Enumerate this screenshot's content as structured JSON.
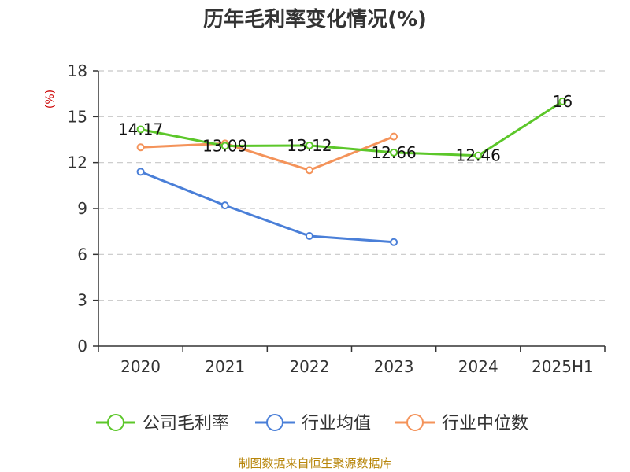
{
  "chart_data": {
    "type": "line",
    "title": "历年毛利率变化情况(%)",
    "ylabel": "(%)",
    "xlabel": "",
    "categories": [
      "2020",
      "2021",
      "2022",
      "2023",
      "2024",
      "2025H1"
    ],
    "ylim": [
      0,
      18
    ],
    "yticks": [
      0,
      3,
      6,
      9,
      12,
      15,
      18
    ],
    "grid": true,
    "legend_position": "bottom",
    "series": [
      {
        "name": "公司毛利率",
        "color": "#5cc72a",
        "values": [
          14.17,
          13.09,
          13.12,
          12.66,
          12.46,
          16
        ],
        "labels": [
          "14.17",
          "13.09",
          "13.12",
          "12.66",
          "12.46",
          "16"
        ]
      },
      {
        "name": "行业均值",
        "color": "#4a7fd8",
        "values": [
          11.4,
          9.2,
          7.2,
          6.8,
          null,
          null
        ]
      },
      {
        "name": "行业中位数",
        "color": "#f4935a",
        "values": [
          13.0,
          13.25,
          11.5,
          13.7,
          null,
          null
        ]
      }
    ]
  },
  "footer": {
    "source": "制图数据来自恒生聚源数据库"
  }
}
